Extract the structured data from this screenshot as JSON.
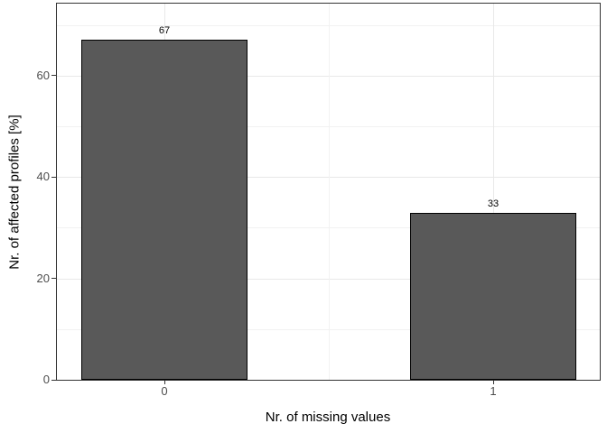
{
  "chart_data": {
    "type": "bar",
    "title": "",
    "categories": [
      "0",
      "1"
    ],
    "values": [
      67,
      33
    ],
    "bar_labels": [
      "67",
      "33"
    ],
    "xlabel": "Nr. of missing values",
    "ylabel": "Nr. of affected profiles [%]",
    "ylim": [
      0,
      74.2
    ],
    "yticks": [
      0,
      20,
      40,
      60
    ],
    "ytick_labels": [
      "0",
      "20",
      "40",
      "60"
    ],
    "yticks_minor": [
      10,
      30,
      50,
      70
    ],
    "grid": "on",
    "legend": "none",
    "colors": {
      "bar_fill": "#595959",
      "bar_border": "#000000",
      "panel_border": "#333333",
      "grid_major": "#e8e8e8",
      "grid_minor": "#f2f2f2",
      "tick_mark": "#333333",
      "tick_label": "#4d4d4d",
      "axis_title": "#000000",
      "background": "#ffffff",
      "value_label": "#000000"
    }
  }
}
